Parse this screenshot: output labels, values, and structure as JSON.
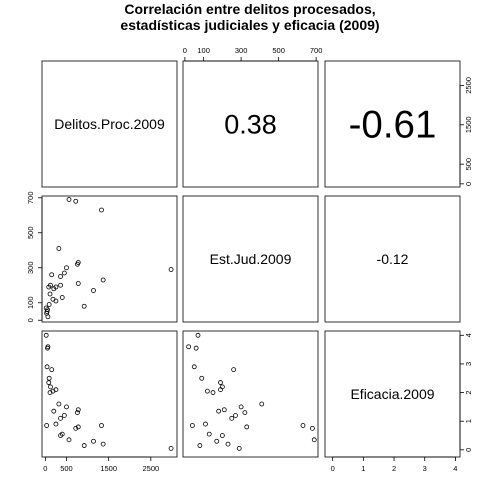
{
  "title_lines": [
    "Correlación entre delitos procesados,",
    "estadísticas judiciales y eficacia (2009)"
  ],
  "chart_data": {
    "type": "scatter",
    "variables": [
      "Delitos.Proc.2009",
      "Est.Jud.2009",
      "Eficacia.2009"
    ],
    "ranges": {
      "Delitos.Proc.2009": [
        -80,
        3120
      ],
      "Est.Jud.2009": [
        -10,
        710
      ],
      "Eficacia.2009": [
        -0.25,
        4.15
      ]
    },
    "ticks": {
      "Delitos.Proc.2009": [
        "0",
        "500",
        "1500",
        "2500"
      ],
      "Est.Jud.2009": [
        "0",
        "100",
        "300",
        "500",
        "700"
      ],
      "Est.Jud.2009_top": [
        "0",
        "100",
        "300",
        "500",
        "700"
      ],
      "Eficacia.2009": [
        "0",
        "1",
        "2",
        "3",
        "4"
      ],
      "Eficacia.2009_bottom": [
        "0",
        "1",
        "2",
        "3",
        "4"
      ]
    },
    "correlations": [
      {
        "pair": [
          "Delitos.Proc.2009",
          "Est.Jud.2009"
        ],
        "value": "0.38"
      },
      {
        "pair": [
          "Delitos.Proc.2009",
          "Eficacia.2009"
        ],
        "value": "-0.61"
      },
      {
        "pair": [
          "Est.Jud.2009",
          "Eficacia.2009"
        ],
        "value": "-0.12"
      }
    ],
    "points": [
      {
        "delitos": 560,
        "est_jud": 690,
        "eficacia": 0.35
      },
      {
        "delitos": 720,
        "est_jud": 680,
        "eficacia": 0.75
      },
      {
        "delitos": 1330,
        "est_jud": 630,
        "eficacia": 0.85
      },
      {
        "delitos": 320,
        "est_jud": 410,
        "eficacia": 1.6
      },
      {
        "delitos": 780,
        "est_jud": 330,
        "eficacia": 0.8
      },
      {
        "delitos": 760,
        "est_jud": 320,
        "eficacia": 1.3
      },
      {
        "delitos": 500,
        "est_jud": 300,
        "eficacia": 1.5
      },
      {
        "delitos": 2980,
        "est_jud": 290,
        "eficacia": 0.05
      },
      {
        "delitos": 450,
        "est_jud": 270,
        "eficacia": 1.2
      },
      {
        "delitos": 150,
        "est_jud": 260,
        "eficacia": 2.8
      },
      {
        "delitos": 360,
        "est_jud": 250,
        "eficacia": 1.1
      },
      {
        "delitos": 1370,
        "est_jud": 230,
        "eficacia": 0.2
      },
      {
        "delitos": 780,
        "est_jud": 210,
        "eficacia": 1.4
      },
      {
        "delitos": 120,
        "est_jud": 200,
        "eficacia": 2.2
      },
      {
        "delitos": 360,
        "est_jud": 200,
        "eficacia": 0.5
      },
      {
        "delitos": 250,
        "est_jud": 190,
        "eficacia": 2.1
      },
      {
        "delitos": 80,
        "est_jud": 190,
        "eficacia": 2.35
      },
      {
        "delitos": 200,
        "est_jud": 180,
        "eficacia": 1.35
      },
      {
        "delitos": 1140,
        "est_jud": 170,
        "eficacia": 0.3
      },
      {
        "delitos": 110,
        "est_jud": 150,
        "eficacia": 2.0
      },
      {
        "delitos": 400,
        "est_jud": 130,
        "eficacia": 0.55
      },
      {
        "delitos": 180,
        "est_jud": 120,
        "eficacia": 2.05
      },
      {
        "delitos": 250,
        "est_jud": 110,
        "eficacia": 0.9
      },
      {
        "delitos": 90,
        "est_jud": 90,
        "eficacia": 2.5
      },
      {
        "delitos": 920,
        "est_jud": 80,
        "eficacia": 0.15
      },
      {
        "delitos": 20,
        "est_jud": 70,
        "eficacia": 4.0
      },
      {
        "delitos": 50,
        "est_jud": 60,
        "eficacia": 3.55
      },
      {
        "delitos": 40,
        "est_jud": 50,
        "eficacia": 2.9
      },
      {
        "delitos": 30,
        "est_jud": 40,
        "eficacia": 0.85
      },
      {
        "delitos": 60,
        "est_jud": 20,
        "eficacia": 3.6
      }
    ]
  }
}
